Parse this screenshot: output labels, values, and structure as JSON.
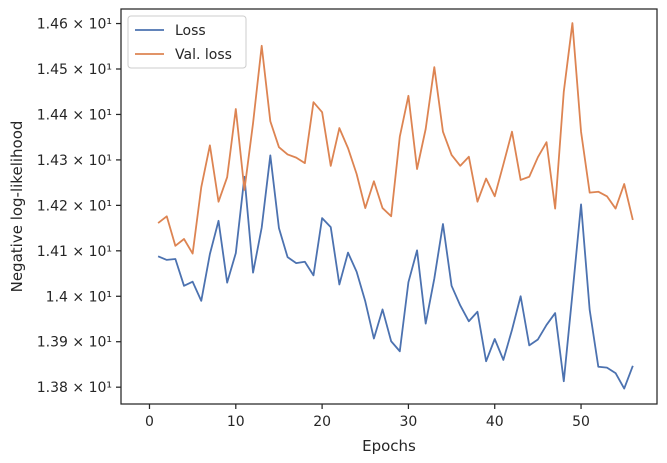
{
  "chart_data": {
    "type": "line",
    "xlabel": "Epochs",
    "ylabel": "Negative log-likelihood",
    "xlim": [
      -3.3,
      58.8
    ],
    "ylim": [
      13.763,
      14.632
    ],
    "x_ticks": [
      0,
      10,
      20,
      30,
      40,
      50
    ],
    "x_tick_labels": [
      "0",
      "10",
      "20",
      "30",
      "40",
      "50"
    ],
    "y_ticks": [
      13.8,
      13.9,
      14.0,
      14.1,
      14.2,
      14.3,
      14.4,
      14.5,
      14.6
    ],
    "y_tick_labels": [
      "1.38 × 10¹",
      "1.39 × 10¹",
      "1.4 × 10¹",
      "1.41 × 10¹",
      "1.42 × 10¹",
      "1.43 × 10¹",
      "1.44 × 10¹",
      "1.45 × 10¹",
      "1.46 × 10¹"
    ],
    "grid": false,
    "legend_position": "top-left",
    "x": [
      1,
      2,
      3,
      4,
      5,
      6,
      7,
      8,
      9,
      10,
      11,
      12,
      13,
      14,
      15,
      16,
      17,
      18,
      19,
      20,
      21,
      22,
      23,
      24,
      25,
      26,
      27,
      28,
      29,
      30,
      31,
      32,
      33,
      34,
      35,
      36,
      37,
      38,
      39,
      40,
      41,
      42,
      43,
      44,
      45,
      46,
      47,
      48,
      49,
      50,
      51,
      52,
      53,
      54,
      55,
      56
    ],
    "series": [
      {
        "name": "Loss",
        "color": "#4c72b0",
        "values": [
          14.088,
          14.08,
          14.082,
          14.023,
          14.032,
          13.99,
          14.093,
          14.166,
          14.03,
          14.095,
          14.263,
          14.052,
          14.151,
          14.31,
          14.15,
          14.086,
          14.073,
          14.076,
          14.046,
          14.172,
          14.152,
          14.026,
          14.096,
          14.054,
          13.989,
          13.907,
          13.971,
          13.901,
          13.879,
          14.031,
          14.101,
          13.94,
          14.039,
          14.159,
          14.023,
          13.98,
          13.945,
          13.966,
          13.857,
          13.906,
          13.86,
          13.926,
          14.0,
          13.892,
          13.905,
          13.937,
          13.963,
          13.813,
          14.005,
          14.202,
          13.97,
          13.845,
          13.843,
          13.831,
          13.797,
          13.847
        ]
      },
      {
        "name": "Val. loss",
        "color": "#dd8452",
        "values": [
          14.161,
          14.176,
          14.111,
          14.126,
          14.094,
          14.24,
          14.332,
          14.208,
          14.262,
          14.412,
          14.234,
          14.381,
          14.551,
          14.385,
          14.328,
          14.312,
          14.305,
          14.293,
          14.427,
          14.405,
          14.287,
          14.37,
          14.326,
          14.269,
          14.194,
          14.253,
          14.194,
          14.176,
          14.351,
          14.441,
          14.28,
          14.368,
          14.504,
          14.362,
          14.311,
          14.287,
          14.307,
          14.208,
          14.259,
          14.22,
          14.29,
          14.362,
          14.256,
          14.263,
          14.306,
          14.339,
          14.193,
          14.45,
          14.601,
          14.362,
          14.228,
          14.23,
          14.22,
          14.193,
          14.247,
          14.168
        ]
      }
    ]
  }
}
